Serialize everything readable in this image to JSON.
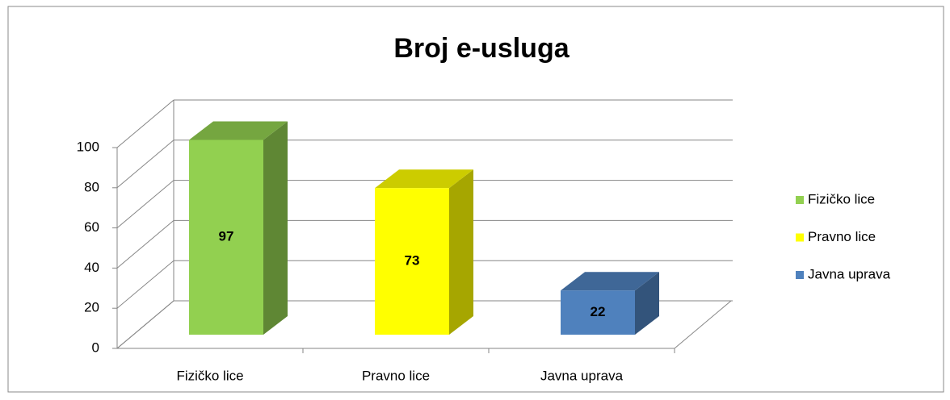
{
  "chart_data": {
    "type": "bar3d",
    "title": "Broj e-usluga",
    "categories": [
      "Fizičko lice",
      "Pravno lice",
      "Javna uprava"
    ],
    "values": [
      97,
      73,
      22
    ],
    "colors": [
      "#92d050",
      "#ffff00",
      "#4f81bd"
    ],
    "ylim": [
      0,
      100
    ],
    "yticks": [
      0,
      20,
      40,
      60,
      80,
      100
    ],
    "grid": true,
    "legend": "right"
  }
}
